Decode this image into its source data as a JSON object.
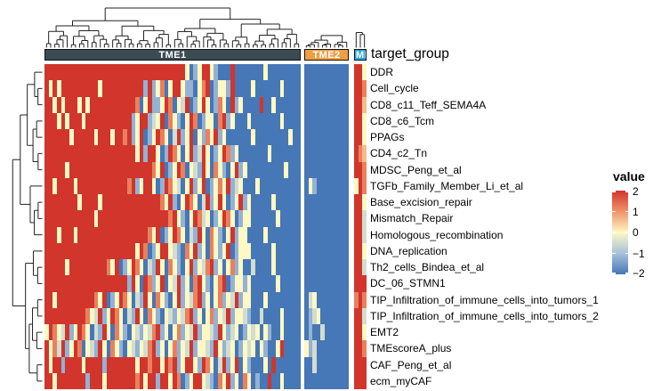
{
  "figure": {
    "annotation_title": "target_group",
    "groups": [
      {
        "label": "TME1",
        "color": "#3A4B52",
        "n_cols": 62
      },
      {
        "label": "TME2",
        "color": "#EF9E44",
        "n_cols": 11
      },
      {
        "label": "ME3",
        "color": "#25A8E0",
        "n_cols": 3
      }
    ]
  },
  "chart_data": {
    "type": "heatmap",
    "legend": {
      "title": "value",
      "ticks": [
        "2",
        "1",
        "0",
        "−1",
        "−2"
      ],
      "tick_values": [
        2,
        1,
        0,
        -1,
        -2
      ]
    },
    "color_scale": {
      "domain": [
        -2,
        2
      ],
      "anchors": [
        [
          -2,
          "#4677B7"
        ],
        [
          -1,
          "#A6C1DB"
        ],
        [
          0,
          "#FDF8C4"
        ],
        [
          1,
          "#F0936A"
        ],
        [
          2,
          "#D1352B"
        ]
      ]
    },
    "value_map": {
      "R": 2,
      "r": 1.2,
      "o": 0.6,
      "w": 0,
      "g": -0.5,
      "b": -1.2,
      "B": -2
    },
    "col_groups": [
      "TME1",
      "TME2",
      "ME3"
    ],
    "row_labels": [
      "DDR",
      "Cell_cycle",
      "CD8_c11_Teff_SEMA4A",
      "CD8_c6_Tcm",
      "PPAGs",
      "CD4_c2_Tn",
      "MDSC_Peng_et_al",
      "TGFb_Family_Member_Li_et_al",
      "Base_excision_repair",
      "Mismatch_Repair",
      "Homologous_recombination",
      "DNA_replication",
      "Th2_cells_Bindea_et_al",
      "DC_06_STMN1",
      "TIP_Infiltration_of_immune_cells_into_tumors_1",
      "TIP_Infiltration_of_immune_cells_into_tumors_2",
      "EMT2",
      "TMEscoreA_plus",
      "CAF_Peng_et_al",
      "ecm_myCAF"
    ],
    "matrix": [
      [
        "RRRRRRRRRRRRRRRRRRRRRRRRRRRRRRRRRRwBbwRRwbBBBRBBBBBBBwBBBBBBBB",
        "BBBBBBBBBBB",
        "RRw"
      ],
      [
        "RwRwRRRRRRRRRwRRRRRRRRRRbRbwrBwRRwbbBwrRBbwwbRBBBBwBBBBBBwBBBB",
        "BBBBBBBBBBB",
        "RRr"
      ],
      [
        "RRwRwRRRwRwRRRRRRRRRRRrBwRbbwRrBwgRBbwRwBbrwBRbwBBBBRBBwBBBBBB",
        "BBBBBBBBBBB",
        "RRo"
      ],
      [
        "RRRwRwRRRwRRRRRRRRRRRbwRRbgwRBrwbBwRrBbwwBrRbwBBBwBBBBBBBwBBBB",
        "BBBBBBBBBBB",
        "RRw"
      ],
      [
        "RRRRRRwRRRRRwRRRwRRrRbwRBbwRrwBgRbwRBwbrwRbwBBBBBBwBBBBBBBBwBB",
        "BBBBBBBBBBB",
        "RRw"
      ],
      [
        "RRRRRRRRRRRRRRRRRRRRRRwRbRRwBbRrwBwRbgRwBbwRrbwBBBBBBBwBBBBBBB",
        "BBBBBBBBBBB",
        "Rro"
      ],
      [
        "RRRRRwRRRRRRRRRRRRRRRRRRRRrwRBbwRrBwgbRwBrwbBwRbwBBBBBBBBBwBBB",
        "BBBBBBBBBBB",
        "RRr"
      ],
      [
        "RRwRRRRwRRRRRRRRRRRRrRbwRRwBbRrwgBwRbwRBbwrwRbgwBBBwBBBBBBBBBB",
        "BwbBBBBBBBB",
        "wRr"
      ],
      [
        "RRRRRRRRwRRRRwRRRRRRRRRRRRRRrwRbBwRrwBgRbwRwBbwRbwBBBBBwBBBBBB",
        "BBBBBBBBBBB",
        "RRw"
      ],
      [
        "RRRRRRRRRRRRwRRRRRRRRRRRRRRRRRrRwbBwRrgwBbwRrwBbwwBBBBBBwBBBBB",
        "BBBBBBBBBBB",
        "RRg"
      ],
      [
        "RRRwRRRwRRRRRRRRRRRRRRRRRrwRBbwRrwBgbRwBrwbBwRbwwBBBBwBBBBBBBB",
        "BBBBBBBBBBB",
        "RRg"
      ],
      [
        "RRRRRRRRRRRRRRRRRRRRRRwRrBbwRRwgbBrwRbwBrwbwRBbwwwBBBBBwBBBBBB",
        "BBBBBBBBBBB",
        "RRw"
      ],
      [
        "RRRRRwRRRRRRRRRrwRBbwRrwBgbRwBrwbBwRbwgrRbwBwrbwBBgBBBBwBBBBBB",
        "BBBBBBBBBBB",
        "RRg"
      ],
      [
        "RRRRRRRRRRRRRRRRRRRRbRwBRrbwRBwgRbwBrRwbBwrRBbwwbwBBBBBBwBBBBB",
        "BBBBBBBBBBB",
        "RRR"
      ],
      [
        "RRwRRRRRRRRRrwRBbwRrwBgbRwBrwbBwRbwgrRbwBwrbwgRbwwBBBwBBBBBBBB",
        "BgwBBBBBBBB",
        "rRr"
      ],
      [
        "RRRRRRRRRRrwgRbwRrwBgbRwBrwbBwgbwgrRbwBwrbwgRbwwgbBBgBBBBwBBBB",
        "BbgwBBBBBBB",
        "RRg"
      ],
      [
        "wRrwgRbwRrwBgbRwBrwbBwgbwgrRbwBwrbwgRbwwgbRwbgwBbwgwBwbBBwBBBB",
        "BbBBgBBBBBB",
        "RRw"
      ],
      [
        "RwrgRbwRrBwgbRwBrwbBwgbwgrRbwBwrbwgRbwwgbRwbgwBbwgwBwbBBwRBBBB",
        "wbgBBBBBBBB",
        "RRr"
      ],
      [
        "RwRRbRRRRwRRRRbRRRRRRRwRRrRRwRrRbwRRwbRrwBgRbwRBwbBBBwBRBBBBBB",
        "BBgBBBBBBBB",
        "RRR"
      ],
      [
        "RRwRRRRRRRbRRRwRRRRRRRrRwRRbRRwRrBbwRRwgbBrwRbwBrwBbBBRBBwBBBB",
        "BBBBBBBBBBB",
        "RRR"
      ]
    ]
  }
}
